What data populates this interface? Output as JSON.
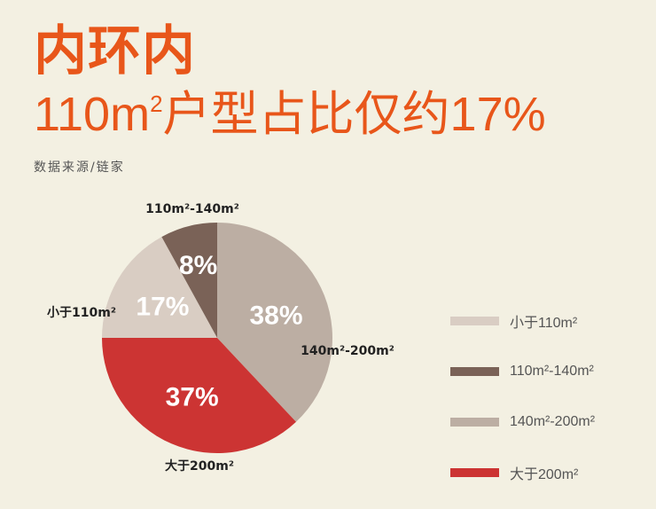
{
  "title": "内环内",
  "subtitle": {
    "prefix": "110m",
    "sup": "2",
    "suffix": "户型占比仅约17%"
  },
  "source": "数据来源/链家",
  "chart_data": {
    "type": "pie",
    "start": "top",
    "direction": "clockwise",
    "slices": [
      {
        "label": "140m²-200m²",
        "value": 38,
        "data_label": "38%",
        "color": "#bcaea3"
      },
      {
        "label": "大于200m²",
        "value": 37,
        "data_label": "37%",
        "color": "#cc3433"
      },
      {
        "label": "小于110m²",
        "value": 17,
        "data_label": "17%",
        "color": "#d9cdc3"
      },
      {
        "label": "110m²-140m²",
        "value": 8,
        "data_label": "8%",
        "color": "#7a6257"
      }
    ],
    "legend": {
      "placement": "right",
      "items": [
        {
          "label": "小于110m²",
          "color": "#d9cdc3"
        },
        {
          "label": "110m²-140m²",
          "color": "#7a6257"
        },
        {
          "label": "140m²-200m²",
          "color": "#bcaea3"
        },
        {
          "label": "大于200m²",
          "color": "#cc3433"
        }
      ]
    }
  }
}
